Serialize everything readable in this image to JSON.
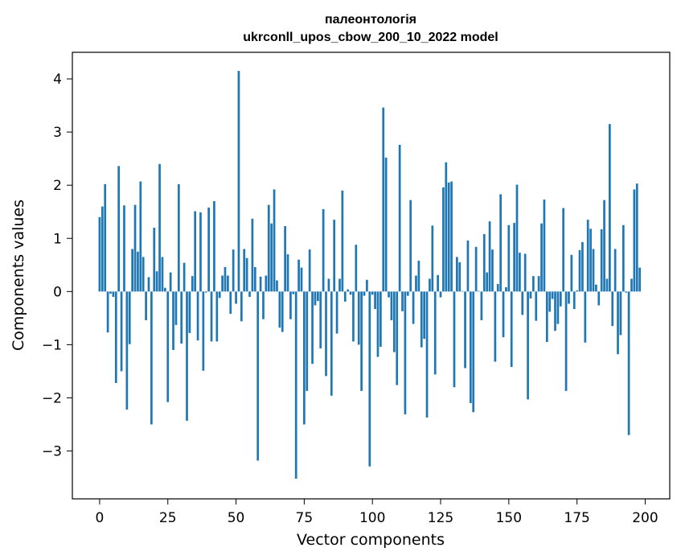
{
  "chart_data": {
    "type": "bar",
    "title": "палеонтологія",
    "subtitle": "ukrconll_upos_cbow_200_10_2022 model",
    "xlabel": "Vector components",
    "ylabel": "Components values",
    "xlim": [
      -10,
      209
    ],
    "ylim": [
      -3.9,
      4.5
    ],
    "grid": false,
    "bar_color": "#1f77b4",
    "xticks": [
      0,
      25,
      50,
      75,
      100,
      125,
      150,
      175,
      200
    ],
    "xtick_labels": [
      "0",
      "25",
      "50",
      "75",
      "100",
      "125",
      "150",
      "175",
      "200"
    ],
    "yticks": [
      -3,
      -2,
      -1,
      0,
      1,
      2,
      3,
      4
    ],
    "ytick_labels": [
      "−3",
      "−2",
      "−1",
      "0",
      "1",
      "2",
      "3",
      "4"
    ],
    "values": [
      1.4,
      1.6,
      2.02,
      -0.77,
      -0.04,
      -0.1,
      -1.72,
      2.36,
      -1.5,
      1.62,
      -2.22,
      -0.99,
      0.8,
      1.63,
      0.75,
      2.07,
      0.65,
      -0.54,
      0.27,
      -2.5,
      1.2,
      0.38,
      2.4,
      0.65,
      0.07,
      -2.08,
      0.36,
      -1.1,
      -0.63,
      2.02,
      -0.98,
      0.54,
      -2.43,
      -0.78,
      0.29,
      1.51,
      -0.92,
      1.49,
      -1.49,
      -0.02,
      1.58,
      -0.94,
      1.7,
      -0.94,
      -0.12,
      0.3,
      0.46,
      0.3,
      -0.42,
      0.79,
      -0.23,
      4.15,
      -0.56,
      0.8,
      0.63,
      -0.1,
      1.37,
      0.46,
      -3.18,
      0.28,
      -0.52,
      0.3,
      1.63,
      1.28,
      1.92,
      0.21,
      -0.68,
      -0.76,
      1.23,
      0.7,
      -0.52,
      -0.05,
      -3.52,
      0.6,
      0.45,
      -2.5,
      -1.87,
      0.79,
      -1.36,
      -0.26,
      -0.18,
      -1.07,
      1.55,
      -1.59,
      0.24,
      -1.96,
      1.35,
      -0.79,
      0.24,
      1.9,
      -0.19,
      0.04,
      -0.06,
      -0.94,
      0.88,
      -1.0,
      -1.87,
      -0.08,
      0.22,
      -3.29,
      -0.06,
      -0.33,
      -1.23,
      -1.04,
      3.46,
      2.52,
      -0.11,
      -0.54,
      -1.14,
      -1.76,
      2.76,
      -0.37,
      -2.31,
      -0.08,
      1.72,
      -0.61,
      0.3,
      0.58,
      -1.05,
      -0.89,
      -2.37,
      0.24,
      1.24,
      -1.56,
      0.31,
      -0.11,
      1.96,
      2.43,
      2.05,
      2.07,
      -1.8,
      0.65,
      0.55,
      0.01,
      -1.44,
      0.96,
      -2.1,
      -2.27,
      0.84,
      0.01,
      -0.54,
      1.08,
      0.36,
      1.32,
      0.79,
      -1.32,
      0.14,
      1.83,
      -0.86,
      0.08,
      1.25,
      -1.42,
      1.29,
      2.01,
      0.73,
      -0.44,
      0.71,
      -2.03,
      -0.13,
      0.29,
      -0.55,
      0.29,
      1.28,
      1.73,
      -0.95,
      -0.38,
      -0.14,
      -0.74,
      -0.61,
      -0.28,
      1.57,
      -1.87,
      -0.23,
      0.69,
      -0.33,
      0.02,
      0.78,
      0.93,
      -0.96,
      1.35,
      1.18,
      0.8,
      0.13,
      -0.26,
      1.17,
      1.72,
      0.24,
      3.15,
      -0.65,
      0.8,
      -1.18,
      -0.82,
      1.25,
      -0.02,
      -2.7,
      0.24,
      1.92,
      2.03,
      0.45
    ]
  }
}
